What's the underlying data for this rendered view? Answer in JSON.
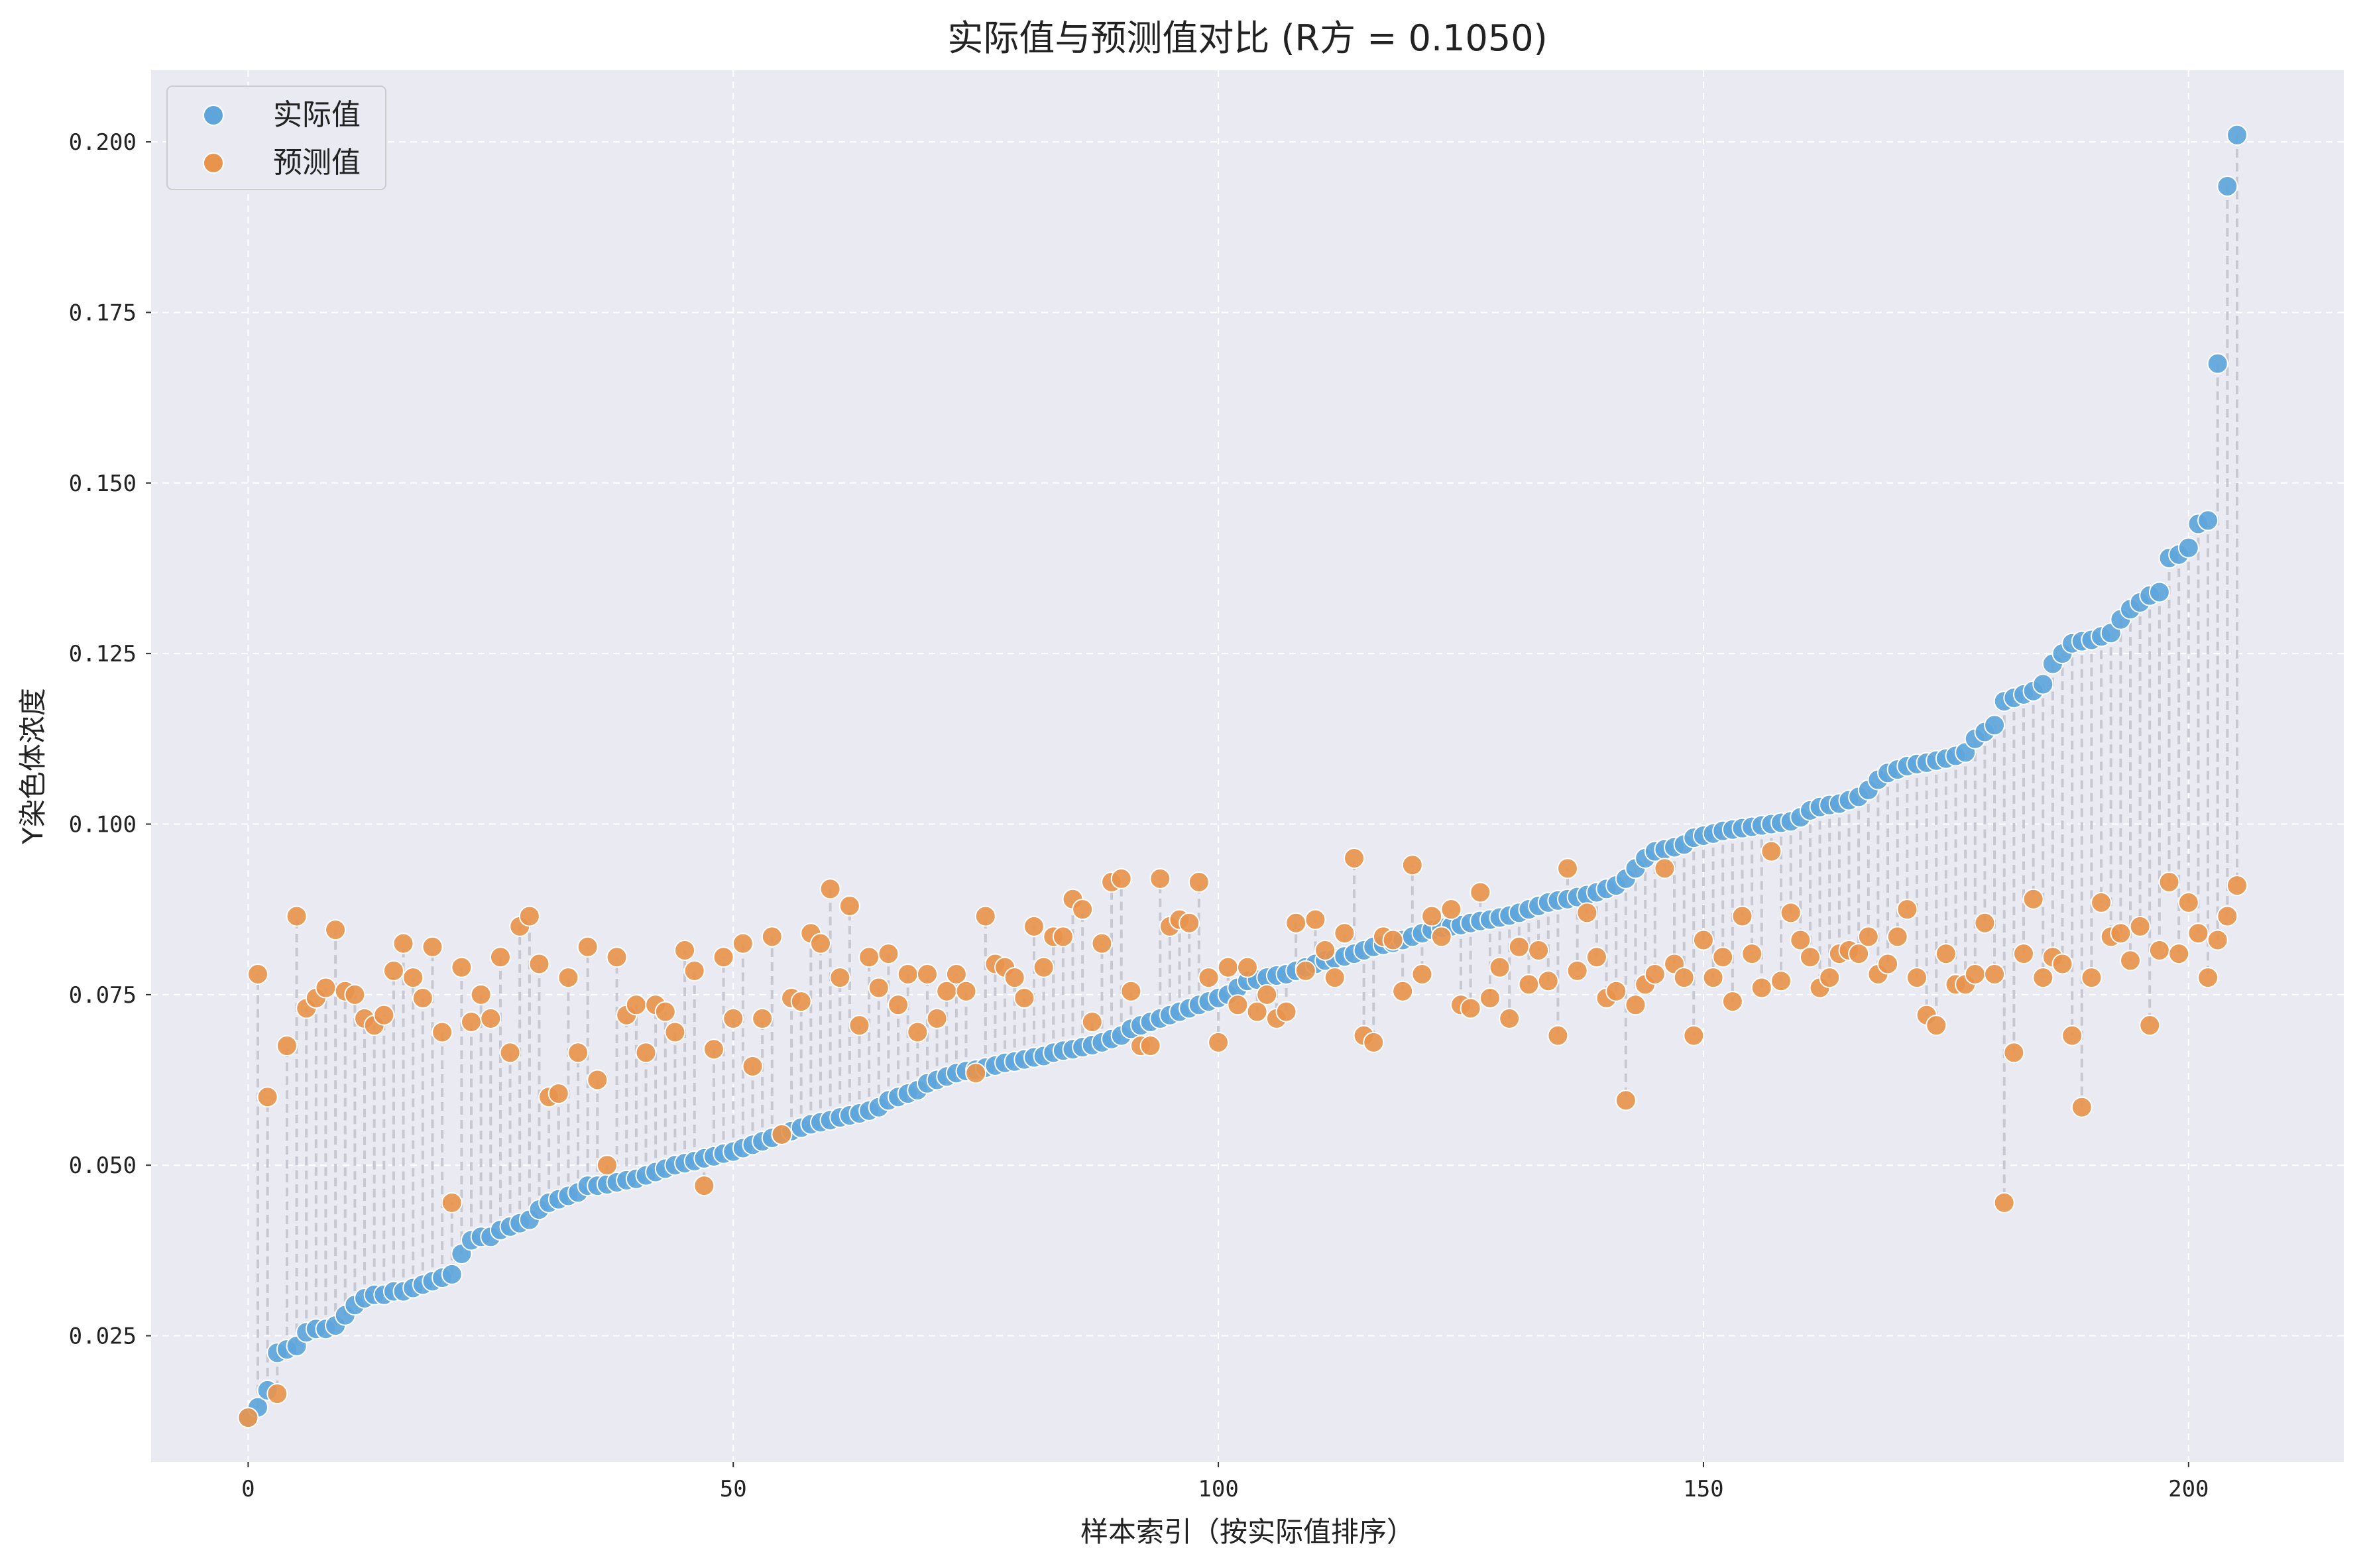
{
  "chart_data": {
    "type": "scatter",
    "title": "实际值与预测值对比 (R方 = 0.1050)",
    "xlabel": "样本索引（按实际值排序）",
    "ylabel": "Y染色体浓度",
    "xlim": [
      -10,
      216
    ],
    "ylim": [
      0.0065,
      0.2105
    ],
    "x_ticks": [
      0,
      50,
      100,
      150,
      200
    ],
    "y_ticks": [
      0.025,
      0.05,
      0.075,
      0.1,
      0.125,
      0.15,
      0.175,
      0.2
    ],
    "x_tick_labels": [
      "0",
      "50",
      "100",
      "150",
      "200"
    ],
    "y_tick_labels": [
      "0.025",
      "0.050",
      "0.075",
      "0.100",
      "0.125",
      "0.150",
      "0.175",
      "0.200"
    ],
    "grid": true,
    "legend_position": "top-left",
    "background_color": "#eaeaf2",
    "connector_color": "#c8c8d2",
    "series": [
      {
        "name": "实际值",
        "color": "#5da5da",
        "x": [
          0,
          1,
          2,
          3,
          4,
          5,
          6,
          7,
          8,
          9,
          10,
          11,
          12,
          13,
          14,
          15,
          16,
          17,
          18,
          19,
          20,
          21,
          22,
          23,
          24,
          25,
          26,
          27,
          28,
          29,
          30,
          31,
          32,
          33,
          34,
          35,
          36,
          37,
          38,
          39,
          40,
          41,
          42,
          43,
          44,
          45,
          46,
          47,
          48,
          49,
          50,
          51,
          52,
          53,
          54,
          55,
          56,
          57,
          58,
          59,
          60,
          61,
          62,
          63,
          64,
          65,
          66,
          67,
          68,
          69,
          70,
          71,
          72,
          73,
          74,
          75,
          76,
          77,
          78,
          79,
          80,
          81,
          82,
          83,
          84,
          85,
          86,
          87,
          88,
          89,
          90,
          91,
          92,
          93,
          94,
          95,
          96,
          97,
          98,
          99,
          100,
          101,
          102,
          103,
          104,
          105,
          106,
          107,
          108,
          109,
          110,
          111,
          112,
          113,
          114,
          115,
          116,
          117,
          118,
          119,
          120,
          121,
          122,
          123,
          124,
          125,
          126,
          127,
          128,
          129,
          130,
          131,
          132,
          133,
          134,
          135,
          136,
          137,
          138,
          139,
          140,
          141,
          142,
          143,
          144,
          145,
          146,
          147,
          148,
          149,
          150,
          151,
          152,
          153,
          154,
          155,
          156,
          157,
          158,
          159,
          160,
          161,
          162,
          163,
          164,
          165,
          166,
          167,
          168,
          169,
          170,
          171,
          172,
          173,
          174,
          175,
          176,
          177,
          178,
          179,
          180,
          181,
          182,
          183,
          184,
          185,
          186,
          187,
          188,
          189,
          190,
          191,
          192,
          193,
          194,
          195,
          196,
          197,
          198,
          199,
          200,
          201,
          202,
          203,
          204,
          205
        ],
        "y": [
          0.013,
          0.0145,
          0.017,
          0.0225,
          0.023,
          0.0235,
          0.0255,
          0.026,
          0.026,
          0.0265,
          0.028,
          0.0295,
          0.0305,
          0.031,
          0.031,
          0.0315,
          0.0315,
          0.032,
          0.0325,
          0.033,
          0.0335,
          0.034,
          0.037,
          0.039,
          0.0395,
          0.0395,
          0.0405,
          0.041,
          0.0415,
          0.042,
          0.0435,
          0.0445,
          0.045,
          0.0455,
          0.046,
          0.047,
          0.047,
          0.0472,
          0.0475,
          0.0478,
          0.048,
          0.0485,
          0.049,
          0.0495,
          0.05,
          0.0503,
          0.0506,
          0.051,
          0.0513,
          0.0517,
          0.052,
          0.0525,
          0.053,
          0.0535,
          0.054,
          0.0545,
          0.055,
          0.0555,
          0.056,
          0.0563,
          0.0566,
          0.057,
          0.0573,
          0.0576,
          0.058,
          0.0585,
          0.0595,
          0.06,
          0.0605,
          0.061,
          0.062,
          0.0625,
          0.063,
          0.0635,
          0.0638,
          0.064,
          0.0643,
          0.0646,
          0.065,
          0.0652,
          0.0655,
          0.0658,
          0.066,
          0.0665,
          0.0668,
          0.067,
          0.0673,
          0.0676,
          0.068,
          0.0685,
          0.069,
          0.07,
          0.0705,
          0.071,
          0.0715,
          0.072,
          0.0725,
          0.073,
          0.0735,
          0.074,
          0.0745,
          0.075,
          0.076,
          0.077,
          0.0772,
          0.0775,
          0.0778,
          0.078,
          0.0785,
          0.079,
          0.0795,
          0.08,
          0.0803,
          0.0806,
          0.081,
          0.0815,
          0.082,
          0.0823,
          0.0826,
          0.083,
          0.0835,
          0.084,
          0.0845,
          0.0848,
          0.085,
          0.0852,
          0.0855,
          0.0858,
          0.086,
          0.0863,
          0.0866,
          0.087,
          0.0875,
          0.088,
          0.0885,
          0.0888,
          0.089,
          0.0893,
          0.0896,
          0.09,
          0.0905,
          0.091,
          0.092,
          0.0935,
          0.095,
          0.096,
          0.0963,
          0.0966,
          0.097,
          0.098,
          0.0983,
          0.0986,
          0.099,
          0.0992,
          0.0994,
          0.0996,
          0.0998,
          0.1,
          0.1002,
          0.1004,
          0.101,
          0.102,
          0.1025,
          0.1028,
          0.103,
          0.1035,
          0.104,
          0.105,
          0.1065,
          0.1075,
          0.108,
          0.1085,
          0.1088,
          0.109,
          0.1093,
          0.1096,
          0.11,
          0.1105,
          0.1125,
          0.1135,
          0.1145,
          0.118,
          0.1185,
          0.119,
          0.1195,
          0.1205,
          0.1235,
          0.125,
          0.1265,
          0.1268,
          0.127,
          0.1275,
          0.128,
          0.13,
          0.1315,
          0.1325,
          0.1335,
          0.134,
          0.139,
          0.1395,
          0.1405,
          0.144,
          0.1445,
          0.1675,
          0.1935,
          0.201
        ]
      },
      {
        "name": "预测值",
        "color": "#e8944d",
        "x": [
          0,
          1,
          2,
          3,
          4,
          5,
          6,
          7,
          8,
          9,
          10,
          11,
          12,
          13,
          14,
          15,
          16,
          17,
          18,
          19,
          20,
          21,
          22,
          23,
          24,
          25,
          26,
          27,
          28,
          29,
          30,
          31,
          32,
          33,
          34,
          35,
          36,
          37,
          38,
          39,
          40,
          41,
          42,
          43,
          44,
          45,
          46,
          47,
          48,
          49,
          50,
          51,
          52,
          53,
          54,
          55,
          56,
          57,
          58,
          59,
          60,
          61,
          62,
          63,
          64,
          65,
          66,
          67,
          68,
          69,
          70,
          71,
          72,
          73,
          74,
          75,
          76,
          77,
          78,
          79,
          80,
          81,
          82,
          83,
          84,
          85,
          86,
          87,
          88,
          89,
          90,
          91,
          92,
          93,
          94,
          95,
          96,
          97,
          98,
          99,
          100,
          101,
          102,
          103,
          104,
          105,
          106,
          107,
          108,
          109,
          110,
          111,
          112,
          113,
          114,
          115,
          116,
          117,
          118,
          119,
          120,
          121,
          122,
          123,
          124,
          125,
          126,
          127,
          128,
          129,
          130,
          131,
          132,
          133,
          134,
          135,
          136,
          137,
          138,
          139,
          140,
          141,
          142,
          143,
          144,
          145,
          146,
          147,
          148,
          149,
          150,
          151,
          152,
          153,
          154,
          155,
          156,
          157,
          158,
          159,
          160,
          161,
          162,
          163,
          164,
          165,
          166,
          167,
          168,
          169,
          170,
          171,
          172,
          173,
          174,
          175,
          176,
          177,
          178,
          179,
          180,
          181,
          182,
          183,
          184,
          185,
          186,
          187,
          188,
          189,
          190,
          191,
          192,
          193,
          194,
          195,
          196,
          197,
          198,
          199,
          200,
          201,
          202,
          203,
          204,
          205
        ],
        "y": [
          0.013,
          0.078,
          0.06,
          0.0165,
          0.0675,
          0.0865,
          0.073,
          0.0745,
          0.076,
          0.0845,
          0.0755,
          0.075,
          0.0715,
          0.0705,
          0.072,
          0.0785,
          0.0825,
          0.0775,
          0.0745,
          0.082,
          0.0695,
          0.0445,
          0.079,
          0.071,
          0.075,
          0.0715,
          0.0805,
          0.0665,
          0.085,
          0.0865,
          0.0795,
          0.06,
          0.0605,
          0.0775,
          0.0665,
          0.082,
          0.0625,
          0.05,
          0.0805,
          0.072,
          0.0735,
          0.0665,
          0.0735,
          0.0725,
          0.0695,
          0.0815,
          0.0785,
          0.047,
          0.067,
          0.0805,
          0.0715,
          0.0825,
          0.0645,
          0.0715,
          0.0835,
          0.0545,
          0.0745,
          0.074,
          0.084,
          0.0825,
          0.0905,
          0.0775,
          0.088,
          0.0705,
          0.0805,
          0.076,
          0.081,
          0.0735,
          0.078,
          0.0695,
          0.078,
          0.0715,
          0.0755,
          0.078,
          0.0755,
          0.0635,
          0.0865,
          0.0795,
          0.079,
          0.0775,
          0.0745,
          0.085,
          0.079,
          0.0835,
          0.0835,
          0.089,
          0.0875,
          0.071,
          0.0825,
          0.0915,
          0.092,
          0.0755,
          0.0675,
          0.0675,
          0.092,
          0.085,
          0.086,
          0.0855,
          0.0915,
          0.0775,
          0.068,
          0.079,
          0.0735,
          0.079,
          0.0725,
          0.075,
          0.0715,
          0.0725,
          0.0855,
          0.0785,
          0.086,
          0.0815,
          0.0775,
          0.084,
          0.095,
          0.069,
          0.068,
          0.0835,
          0.083,
          0.0755,
          0.094,
          0.078,
          0.0865,
          0.0835,
          0.0875,
          0.0735,
          0.073,
          0.09,
          0.0745,
          0.079,
          0.0715,
          0.082,
          0.0765,
          0.0815,
          0.077,
          0.069,
          0.0935,
          0.0785,
          0.087,
          0.0805,
          0.0745,
          0.0755,
          0.0595,
          0.0735,
          0.0765,
          0.078,
          0.0935,
          0.0795,
          0.0775,
          0.069,
          0.083,
          0.0775,
          0.0805,
          0.074,
          0.0865,
          0.081,
          0.076,
          0.096,
          0.077,
          0.087,
          0.083,
          0.0805,
          0.076,
          0.0775,
          0.081,
          0.0815,
          0.081,
          0.0835,
          0.078,
          0.0795,
          0.0835,
          0.0875,
          0.0775,
          0.072,
          0.0705,
          0.081,
          0.0765,
          0.0765,
          0.078,
          0.0855,
          0.078,
          0.0445,
          0.0665,
          0.081,
          0.089,
          0.0775,
          0.0805,
          0.0795,
          0.069,
          0.0585,
          0.0775,
          0.0885,
          0.0835,
          0.084,
          0.08,
          0.085,
          0.0705,
          0.0815,
          0.0915,
          0.081,
          0.0885,
          0.084,
          0.0775,
          0.083,
          0.0865,
          0.091
        ]
      }
    ]
  }
}
